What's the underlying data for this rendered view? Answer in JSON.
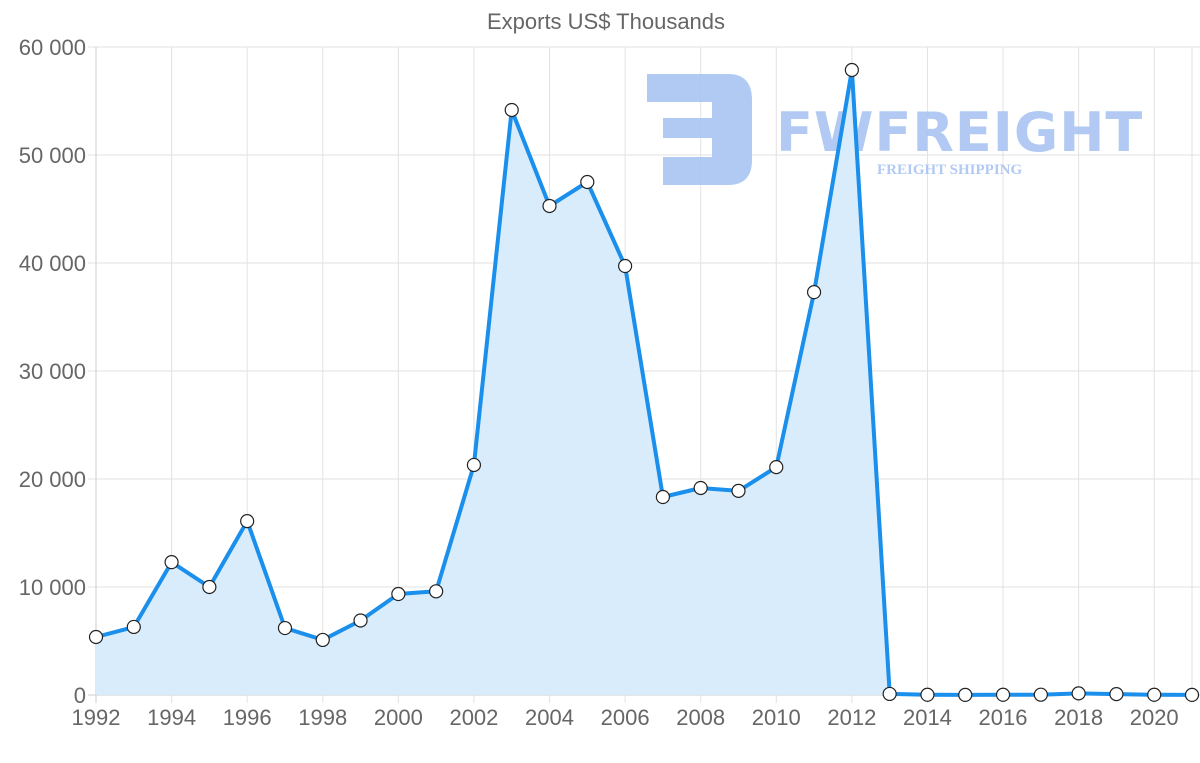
{
  "chart_data": {
    "type": "line",
    "title": "Exports US$ Thousands",
    "xlabel": "",
    "ylabel": "",
    "x": [
      1992,
      1993,
      1994,
      1995,
      1996,
      1997,
      1998,
      1999,
      2000,
      2001,
      2002,
      2003,
      2004,
      2005,
      2006,
      2007,
      2008,
      2009,
      2010,
      2011,
      2012,
      2013,
      2014,
      2015,
      2016,
      2017,
      2018,
      2019,
      2020,
      2021
    ],
    "series": [
      {
        "name": "Exports US$ Thousands",
        "values": [
          5370,
          6300,
          12300,
          10000,
          16100,
          6200,
          5100,
          6900,
          9350,
          9600,
          21300,
          54170,
          45280,
          47500,
          39720,
          18330,
          19170,
          18900,
          21100,
          37300,
          57870,
          100,
          20,
          10,
          20,
          30,
          150,
          80,
          20,
          10
        ],
        "color": "#1a8fec",
        "fill": "#d9ecfc"
      }
    ],
    "ylim": [
      0,
      60000
    ],
    "yticks": [
      0,
      10000,
      20000,
      30000,
      40000,
      50000,
      60000
    ],
    "ytick_labels": [
      "0",
      "10 000",
      "20 000",
      "30 000",
      "40 000",
      "50 000",
      "60 000"
    ],
    "xtick_labels": [
      "1992",
      "1994",
      "1996",
      "1998",
      "2000",
      "2002",
      "2004",
      "2006",
      "2008",
      "2010",
      "2012",
      "2014",
      "2016",
      "2018",
      "2020"
    ],
    "grid": true,
    "legend": "none",
    "area_fill": true
  },
  "watermark": {
    "brand": "FWFREIGHT",
    "tagline": "FREIGHT SHIPPING",
    "color": "#a9c4f2"
  }
}
